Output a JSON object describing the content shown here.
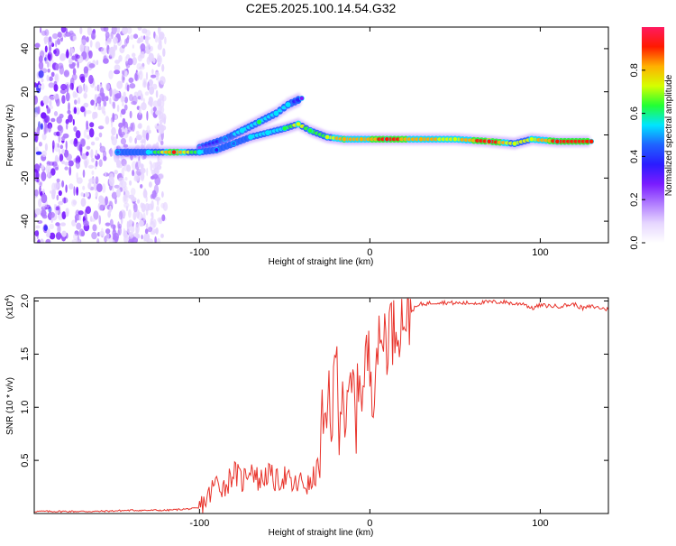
{
  "figure_title": "C2E5.2025.100.14.54.G32",
  "colors": {
    "snr_line": "#e8332b",
    "frame": "#000000",
    "colormap": [
      "#ffffff",
      "#e6d6ff",
      "#b07bff",
      "#7a1cff",
      "#2a1cff",
      "#1f63ff",
      "#00e5ff",
      "#22ff33",
      "#d6ff00",
      "#ffb000",
      "#ff1a00",
      "#ff1a60"
    ]
  },
  "chart_data": [
    {
      "type": "heatmap",
      "title": "C2E5.2025.100.14.54.G32",
      "xlabel": "Height of straight line (km)",
      "ylabel": "Frequency (Hz)",
      "xlim": [
        -197,
        140
      ],
      "ylim": [
        -50,
        50
      ],
      "xticks": [
        -100,
        0,
        100
      ],
      "xtick_labels": [
        "-100",
        "0",
        "100"
      ],
      "yticks": [
        -40,
        -20,
        0,
        20,
        40
      ],
      "ytick_labels": [
        "-40",
        "-20",
        "0",
        "20",
        "40"
      ],
      "colorbar": {
        "label": "Normalized spectral amplitude",
        "range": [
          0,
          1
        ],
        "ticks": [
          0,
          0.2,
          0.4,
          0.6,
          0.8
        ],
        "tick_labels": [
          "0.0",
          "0.2",
          "0.4",
          "0.6",
          "0.8"
        ]
      },
      "main_ridge": [
        {
          "x": -148,
          "y": -8,
          "a": 0.45
        },
        {
          "x": -130,
          "y": -8,
          "a": 0.5
        },
        {
          "x": -115,
          "y": -8,
          "a": 0.9
        },
        {
          "x": -100,
          "y": -8,
          "a": 0.55
        },
        {
          "x": -90,
          "y": -7,
          "a": 0.4
        },
        {
          "x": -80,
          "y": -4,
          "a": 0.45
        },
        {
          "x": -70,
          "y": -1,
          "a": 0.5
        },
        {
          "x": -60,
          "y": 1,
          "a": 0.55
        },
        {
          "x": -50,
          "y": 3,
          "a": 0.6
        },
        {
          "x": -42,
          "y": 5,
          "a": 0.75
        },
        {
          "x": -35,
          "y": 2,
          "a": 0.6
        },
        {
          "x": -25,
          "y": -1,
          "a": 0.7
        },
        {
          "x": -15,
          "y": -2,
          "a": 0.85
        },
        {
          "x": -5,
          "y": -2,
          "a": 0.8
        },
        {
          "x": 10,
          "y": -2,
          "a": 0.9
        },
        {
          "x": 30,
          "y": -2,
          "a": 0.8
        },
        {
          "x": 50,
          "y": -2,
          "a": 0.75
        },
        {
          "x": 70,
          "y": -3,
          "a": 0.95
        },
        {
          "x": 85,
          "y": -4,
          "a": 0.7
        },
        {
          "x": 95,
          "y": -2,
          "a": 0.75
        },
        {
          "x": 110,
          "y": -3,
          "a": 0.9
        },
        {
          "x": 130,
          "y": -3,
          "a": 0.9
        }
      ],
      "upper_branch": [
        {
          "x": -100,
          "y": -6,
          "a": 0.3
        },
        {
          "x": -85,
          "y": -2,
          "a": 0.45
        },
        {
          "x": -75,
          "y": 2,
          "a": 0.55
        },
        {
          "x": -65,
          "y": 6,
          "a": 0.6
        },
        {
          "x": -55,
          "y": 10,
          "a": 0.55
        },
        {
          "x": -48,
          "y": 14,
          "a": 0.5
        },
        {
          "x": -40,
          "y": 17,
          "a": 0.3
        }
      ],
      "noise_region": {
        "x_start": -197,
        "x_end": -120,
        "description": "scattered low-amplitude speckle"
      }
    },
    {
      "type": "line",
      "xlabel": "Height of straight line (km)",
      "ylabel": "SNR (10 * v/v)",
      "multiplier_label": "(x10",
      "multiplier_exp": "4",
      "multiplier_close": ")",
      "xlim": [
        -197,
        140
      ],
      "ylim": [
        0,
        2.03
      ],
      "xticks": [
        -100,
        0,
        100
      ],
      "xtick_labels": [
        "-100",
        "0",
        "100"
      ],
      "yticks": [
        0.5,
        1.0,
        1.5,
        2.0
      ],
      "ytick_labels": [
        "0.5",
        "1.0",
        "1.5",
        "2.0"
      ],
      "series": [
        {
          "name": "SNR",
          "x": [
            -197,
            -180,
            -160,
            -140,
            -120,
            -110,
            -100,
            -95,
            -90,
            -85,
            -80,
            -75,
            -70,
            -65,
            -60,
            -55,
            -50,
            -45,
            -40,
            -35,
            -30,
            -28,
            -26,
            -24,
            -22,
            -20,
            -18,
            -16,
            -14,
            -12,
            -10,
            -8,
            -6,
            -4,
            -2,
            0,
            2,
            4,
            6,
            8,
            10,
            12,
            14,
            16,
            18,
            20,
            22,
            25,
            30,
            35,
            40,
            50,
            60,
            70,
            80,
            85,
            90,
            95,
            100,
            110,
            120,
            125,
            130,
            140
          ],
          "y": [
            0.02,
            0.02,
            0.02,
            0.03,
            0.03,
            0.04,
            0.05,
            0.15,
            0.3,
            0.25,
            0.4,
            0.3,
            0.45,
            0.3,
            0.38,
            0.3,
            0.35,
            0.25,
            0.3,
            0.25,
            0.45,
            0.9,
            0.6,
            1.2,
            0.8,
            1.6,
            0.9,
            1.3,
            0.7,
            1.1,
            1.2,
            0.9,
            1.4,
            1.1,
            1.5,
            1.4,
            1.2,
            1.6,
            1.5,
            1.75,
            1.65,
            1.8,
            1.7,
            1.85,
            1.8,
            1.9,
            1.88,
            1.92,
            1.97,
            1.98,
            1.99,
            1.98,
            1.98,
            1.99,
            1.99,
            1.97,
            1.98,
            1.93,
            1.96,
            1.95,
            1.97,
            1.93,
            1.95,
            1.92
          ]
        }
      ]
    }
  ]
}
